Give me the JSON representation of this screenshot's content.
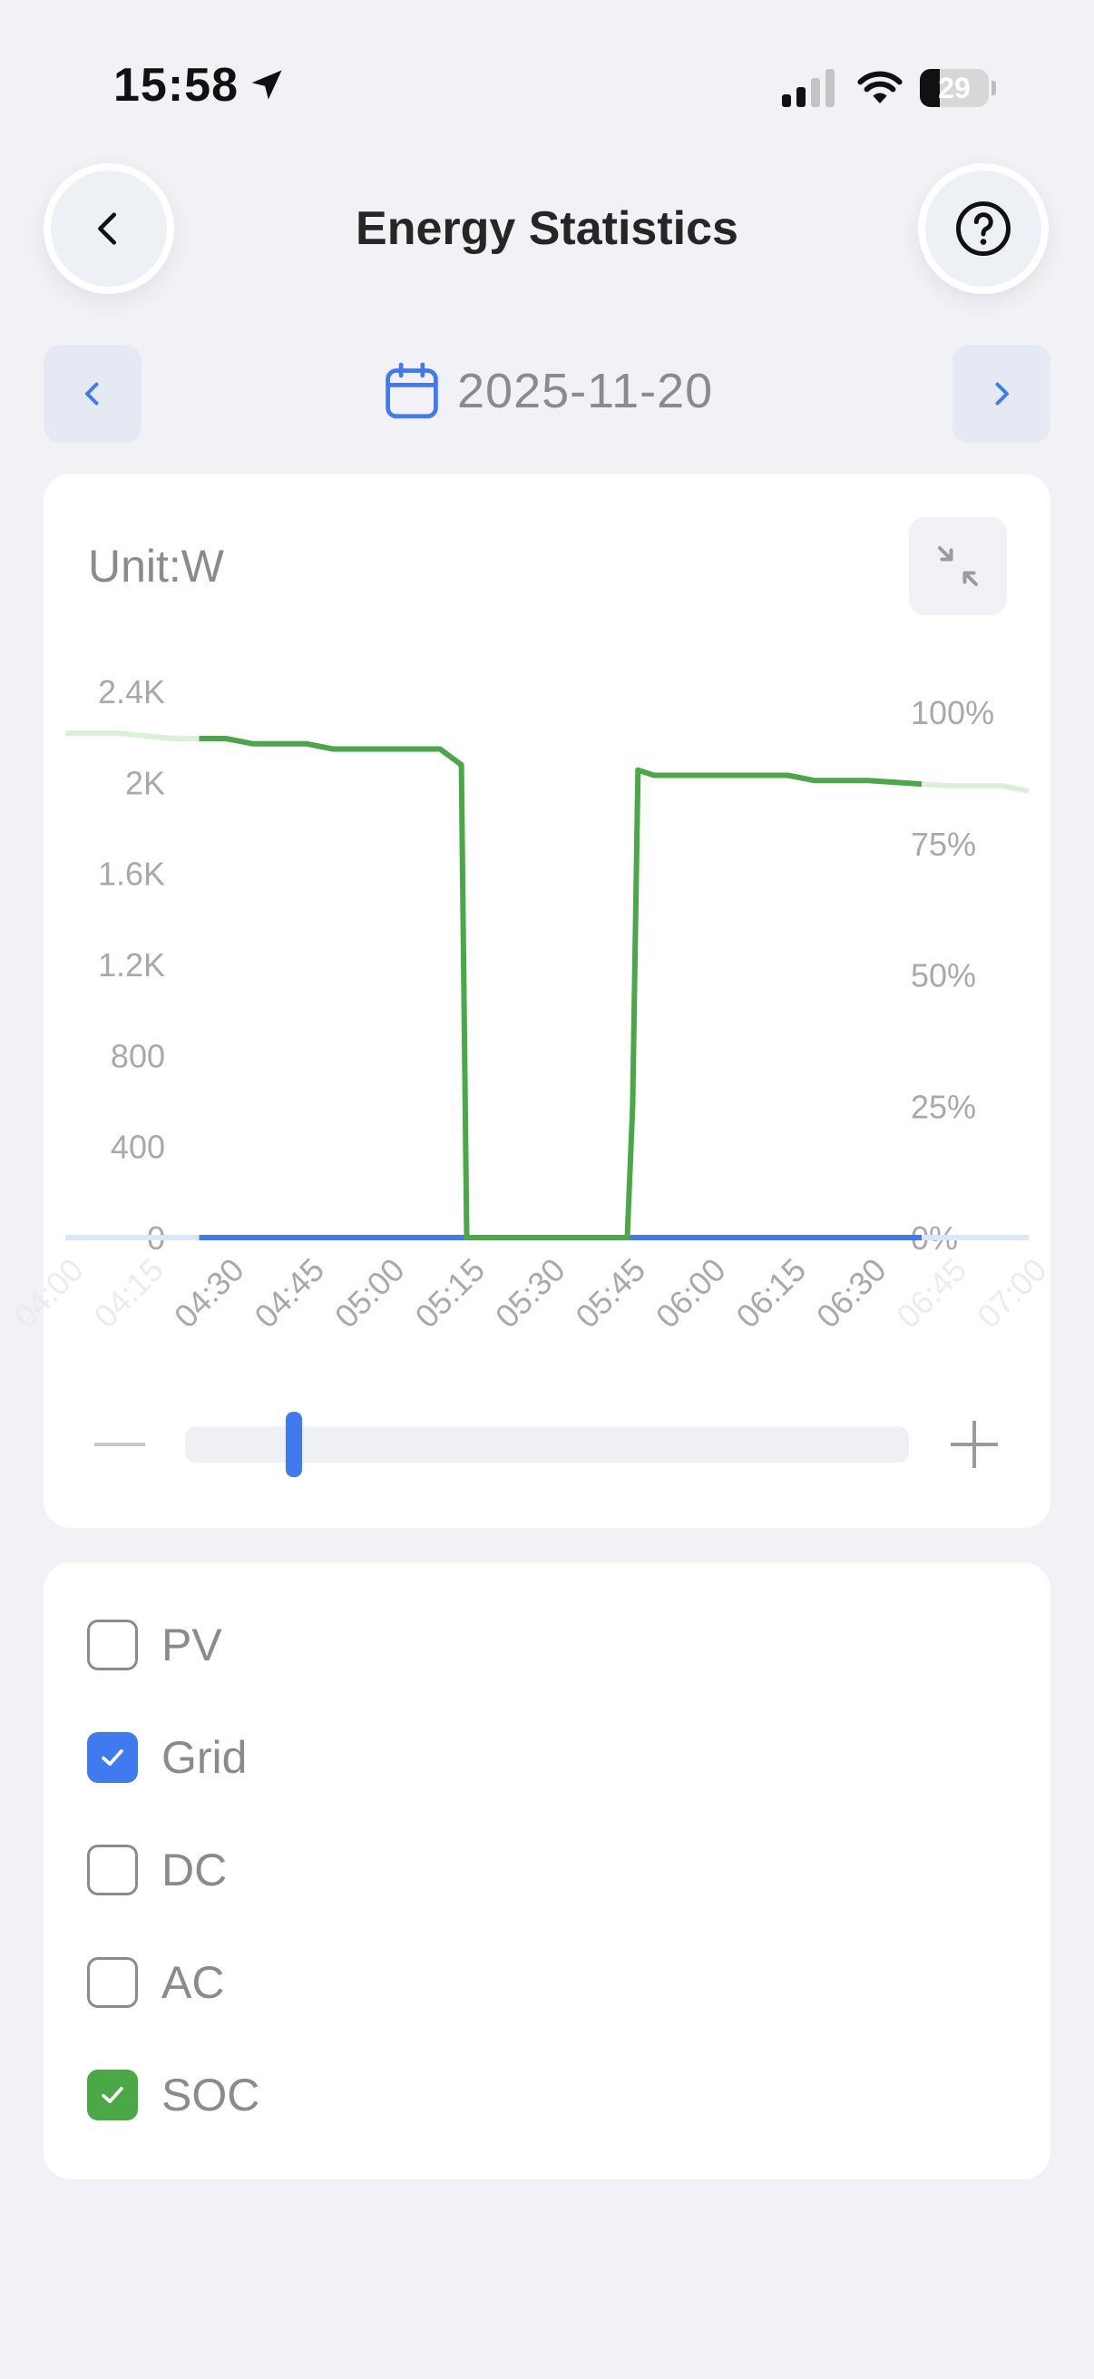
{
  "status_bar": {
    "time": "15:58",
    "battery": "29",
    "battery_level": 0.29
  },
  "header": {
    "title": "Energy Statistics"
  },
  "date_nav": {
    "date": "2025-11-20"
  },
  "chart_card": {
    "unit_label": "Unit:W"
  },
  "zoom_slider": {
    "position": 0.15
  },
  "series_toggles": [
    {
      "label": "PV",
      "checked": false
    },
    {
      "label": "Grid",
      "checked": true,
      "color": "#3f7bef"
    },
    {
      "label": "DC",
      "checked": false
    },
    {
      "label": "AC",
      "checked": false
    },
    {
      "label": "SOC",
      "checked": true,
      "color": "#4aa846"
    }
  ],
  "chart_data": {
    "type": "line",
    "title": "",
    "y_left_ticks": [
      "0",
      "400",
      "800",
      "1.2K",
      "1.6K",
      "2K",
      "2.4K"
    ],
    "y_left_range": [
      0,
      2400
    ],
    "y_right_ticks": [
      "0%",
      "25%",
      "50%",
      "75%",
      "100%"
    ],
    "y_right_range": [
      0,
      100
    ],
    "x_ticks": [
      "04:00",
      "04:15",
      "04:30",
      "04:45",
      "05:00",
      "05:15",
      "05:30",
      "05:45",
      "06:00",
      "06:15",
      "06:30",
      "06:45",
      "07:00"
    ],
    "x_range_minutes": [
      0,
      180
    ],
    "visible_window_minutes": [
      25,
      160
    ],
    "series": [
      {
        "name": "Grid",
        "axis": "left",
        "color": "#3f7bef",
        "x": [
          "04:00",
          "07:00"
        ],
        "y": [
          0,
          0
        ]
      },
      {
        "name": "SOC",
        "axis": "right",
        "color": "#4aa846",
        "x": [
          "04:00",
          "04:10",
          "04:20",
          "04:30",
          "04:35",
          "04:45",
          "04:50",
          "05:00",
          "05:10",
          "05:14",
          "05:15",
          "05:45",
          "05:46",
          "05:47",
          "05:50",
          "06:00",
          "06:10",
          "06:15",
          "06:20",
          "06:30",
          "06:45",
          "06:55",
          "07:00"
        ],
        "y": [
          96,
          96,
          95,
          95,
          94,
          94,
          93,
          93,
          93,
          90,
          0,
          0,
          25,
          89,
          88,
          88,
          88,
          88,
          87,
          87,
          86,
          86,
          85
        ]
      }
    ],
    "grid": false,
    "legend": "none"
  }
}
